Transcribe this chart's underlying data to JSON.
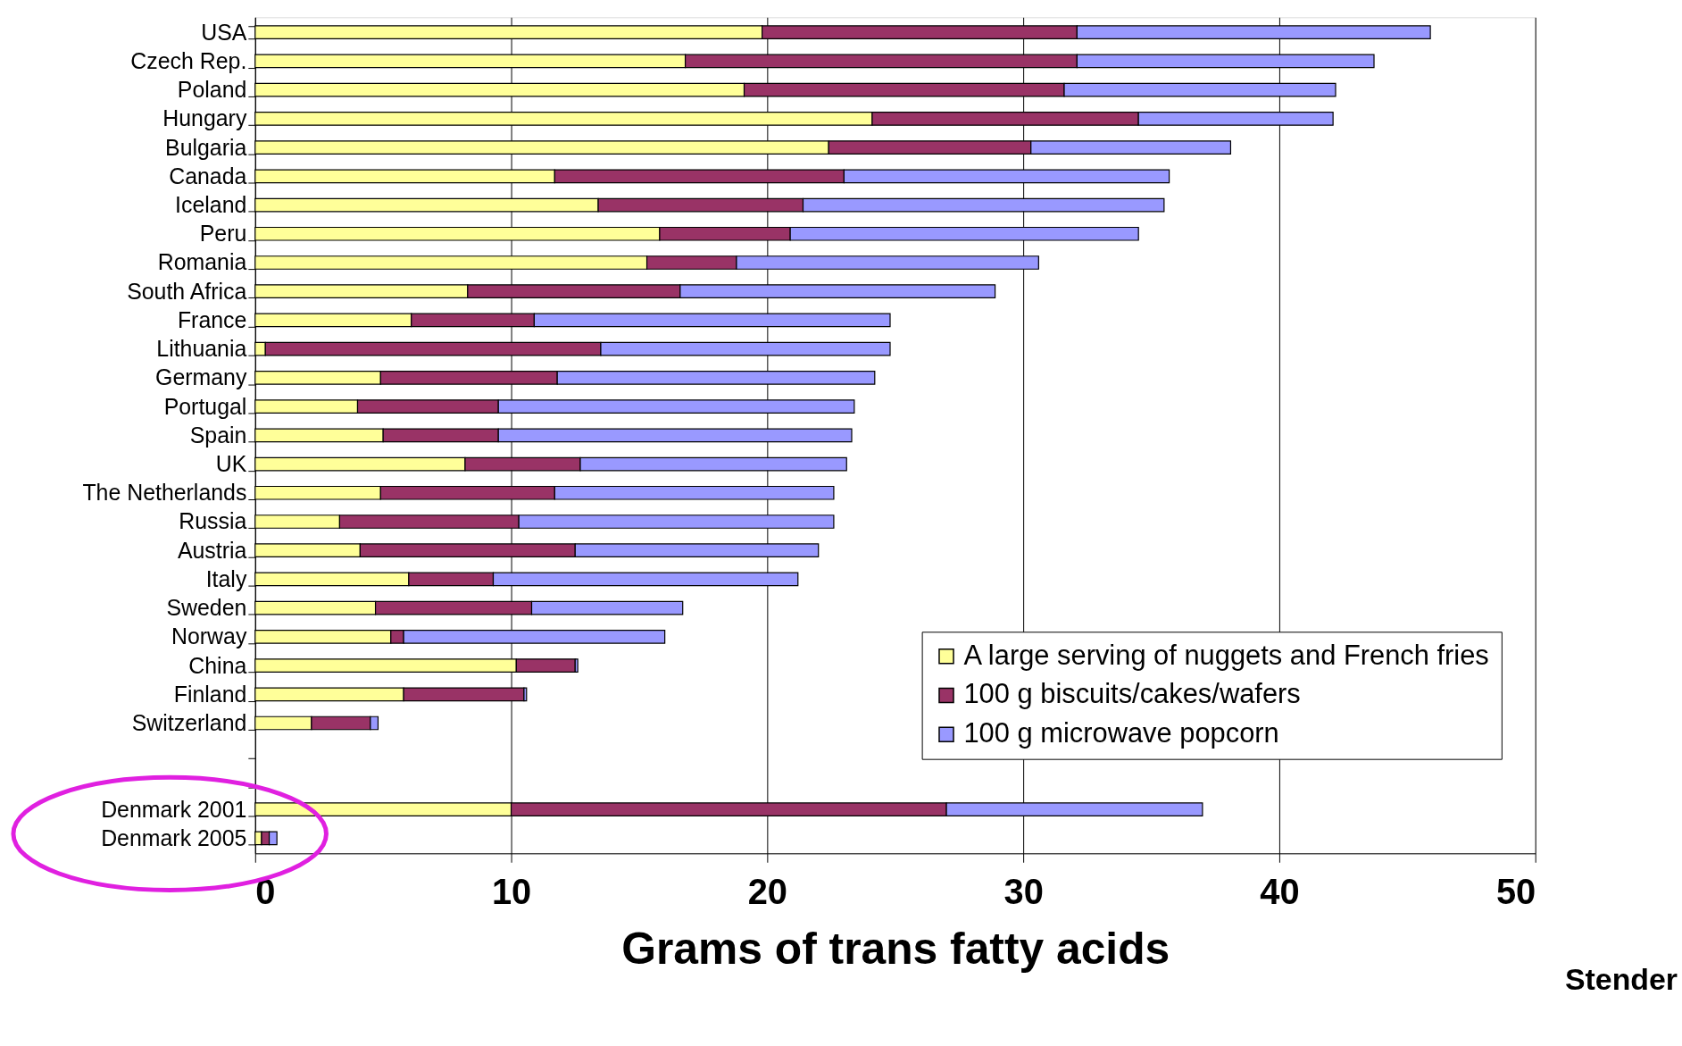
{
  "chart_data": {
    "type": "bar",
    "orientation": "horizontal",
    "stacked": true,
    "xlabel": "Grams of trans fatty acids",
    "categories": [
      "USA",
      "Czech Rep.",
      "Poland",
      "Hungary",
      "Bulgaria",
      "Canada",
      "Iceland",
      "Peru",
      "Romania",
      "South Africa",
      "France",
      "Lithuania",
      "Germany",
      "Portugal",
      "Spain",
      "UK",
      "The Netherlands",
      "Russia",
      "Austria",
      "Italy",
      "Sweden",
      "Norway",
      "China",
      "Finland",
      "Switzerland",
      null,
      null,
      "Denmark 2001",
      "Denmark 2005"
    ],
    "series": [
      {
        "name": "A large serving of nuggets and French fries",
        "color": "#ffff99",
        "values": [
          19.8,
          16.8,
          19.1,
          24.1,
          22.4,
          11.7,
          13.4,
          15.8,
          15.3,
          8.3,
          6.1,
          0.4,
          4.9,
          4.0,
          5.0,
          8.2,
          4.9,
          3.3,
          4.1,
          6.0,
          4.7,
          5.3,
          10.2,
          5.8,
          2.2,
          null,
          null,
          10.0,
          0.25
        ]
      },
      {
        "name": "100 g biscuits/cakes/wafers",
        "color": "#993366",
        "values": [
          12.3,
          15.3,
          12.5,
          10.4,
          7.9,
          11.3,
          8.0,
          5.1,
          3.5,
          8.3,
          4.8,
          13.1,
          6.9,
          5.5,
          4.5,
          4.5,
          6.8,
          7.0,
          8.4,
          3.3,
          6.1,
          0.5,
          2.3,
          4.7,
          2.3,
          null,
          null,
          17.0,
          0.3
        ]
      },
      {
        "name": "100 g microwave popcorn",
        "color": "#9999ff",
        "values": [
          13.8,
          11.6,
          10.6,
          7.6,
          7.8,
          12.7,
          14.1,
          13.6,
          11.8,
          12.3,
          13.9,
          11.3,
          12.4,
          13.9,
          13.8,
          10.4,
          10.9,
          12.3,
          9.5,
          11.9,
          5.9,
          10.2,
          0.1,
          0.1,
          0.3,
          null,
          null,
          10.0,
          0.3
        ]
      }
    ],
    "xlim": [
      0,
      50
    ],
    "xticks": [
      0,
      10,
      20,
      30,
      40,
      50
    ],
    "grid": "x",
    "legend": "bottom right",
    "annotations": [
      "Stender"
    ]
  }
}
